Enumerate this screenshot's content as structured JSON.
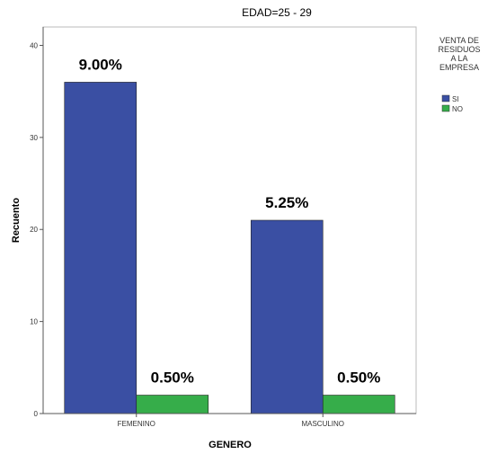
{
  "chart_data": {
    "type": "bar",
    "title": "EDAD=25 - 29",
    "xlabel": "GENERO",
    "ylabel": "Recuento",
    "categories": [
      "FEMENINO",
      "MASCULINO"
    ],
    "ylim": [
      0,
      42
    ],
    "yticks": [
      0,
      10,
      20,
      30,
      40
    ],
    "grid": false,
    "legend_title": [
      "VENTA DE",
      "RESIDUOS",
      "A LA",
      "EMPRESA"
    ],
    "legend_position": "top-right",
    "series": [
      {
        "name": "SI",
        "color": "#3a4fa3",
        "values": [
          36,
          21
        ],
        "labels": [
          "9.00%",
          "5.25%"
        ]
      },
      {
        "name": "NO",
        "color": "#36ad4a",
        "values": [
          2,
          2
        ],
        "labels": [
          "0.50%",
          "0.50%"
        ]
      }
    ]
  }
}
